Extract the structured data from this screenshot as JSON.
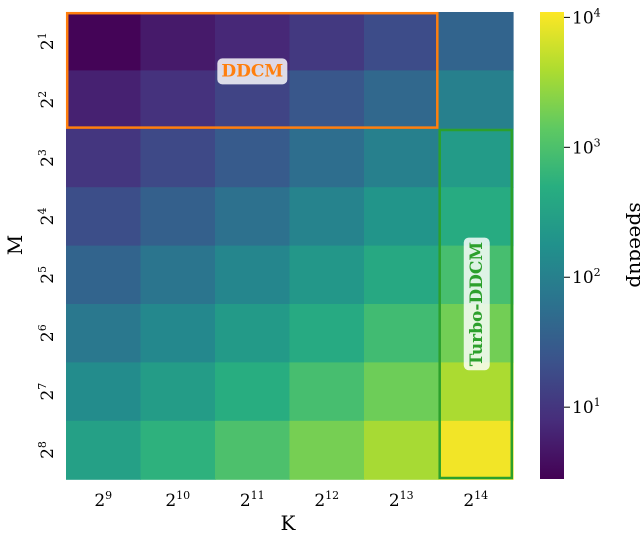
{
  "chart_data": {
    "type": "heatmap",
    "x_labels": [
      {
        "base": "2",
        "exp": "9"
      },
      {
        "base": "2",
        "exp": "10"
      },
      {
        "base": "2",
        "exp": "11"
      },
      {
        "base": "2",
        "exp": "12"
      },
      {
        "base": "2",
        "exp": "13"
      },
      {
        "base": "2",
        "exp": "14"
      }
    ],
    "y_labels": [
      {
        "base": "2",
        "exp": "1"
      },
      {
        "base": "2",
        "exp": "2"
      },
      {
        "base": "2",
        "exp": "3"
      },
      {
        "base": "2",
        "exp": "4"
      },
      {
        "base": "2",
        "exp": "5"
      },
      {
        "base": "2",
        "exp": "6"
      },
      {
        "base": "2",
        "exp": "7"
      },
      {
        "base": "2",
        "exp": "8"
      }
    ],
    "xlabel": "K",
    "ylabel": "M",
    "colorbar_label": "speedup",
    "colorbar_scale": "log",
    "colorbar_range": [
      2.8,
      11000
    ],
    "colorbar_ticks": [
      {
        "value": 10,
        "base": "10",
        "exp": "1"
      },
      {
        "value": 100,
        "base": "10",
        "exp": "2"
      },
      {
        "value": 1000,
        "base": "10",
        "exp": "3"
      },
      {
        "value": 10000,
        "base": "10",
        "exp": "4"
      }
    ],
    "colormap": "viridis",
    "values": [
      [
        3,
        5,
        7,
        11,
        19,
        40
      ],
      [
        6,
        9,
        15,
        26,
        45,
        100
      ],
      [
        10,
        17,
        30,
        55,
        100,
        250
      ],
      [
        20,
        35,
        60,
        110,
        200,
        450
      ],
      [
        40,
        70,
        120,
        220,
        400,
        900
      ],
      [
        75,
        130,
        240,
        430,
        800,
        1800
      ],
      [
        150,
        260,
        480,
        900,
        1700,
        3800
      ],
      [
        300,
        550,
        1000,
        1900,
        3600,
        9500
      ]
    ],
    "regions": [
      {
        "label": "DDCM",
        "rows": [
          0,
          1
        ],
        "cols": [
          0,
          4
        ],
        "color": "#ff7f0e"
      },
      {
        "label": "Turbo-DDCM",
        "rows": [
          2,
          7
        ],
        "cols": [
          5,
          5
        ],
        "color": "#2ca02c"
      }
    ]
  }
}
